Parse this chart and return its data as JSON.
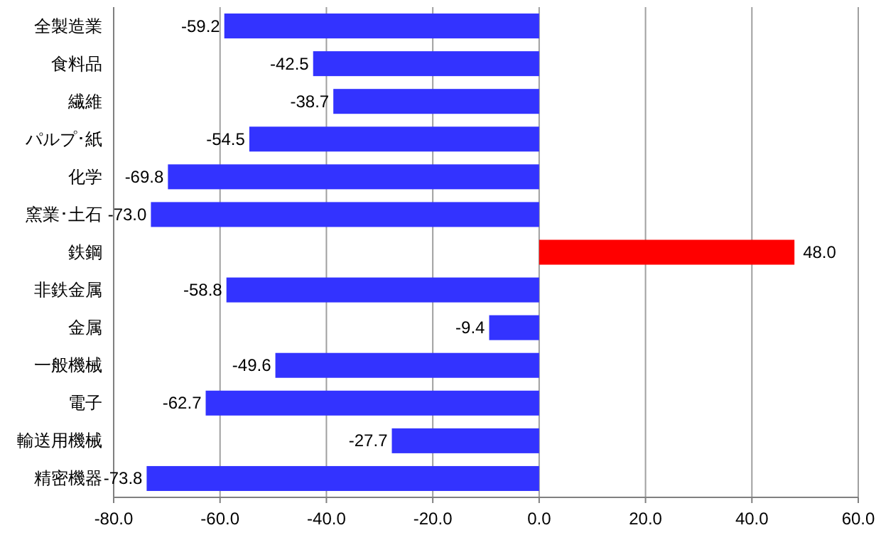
{
  "chart_data": {
    "type": "bar",
    "orientation": "horizontal",
    "categories": [
      "全製造業",
      "食料品",
      "繊維",
      "パルプ･紙",
      "化学",
      "窯業･土石",
      "鉄鋼",
      "非鉄金属",
      "金属",
      "一般機械",
      "電子",
      "輸送用機械",
      "精密機器"
    ],
    "values": [
      -59.2,
      -42.5,
      -38.7,
      -54.5,
      -69.8,
      -73.0,
      48.0,
      -58.8,
      -9.4,
      -49.6,
      -62.7,
      -27.7,
      -73.8
    ],
    "colors": [
      "#3333ff",
      "#3333ff",
      "#3333ff",
      "#3333ff",
      "#3333ff",
      "#3333ff",
      "#ff0000",
      "#3333ff",
      "#3333ff",
      "#3333ff",
      "#3333ff",
      "#3333ff",
      "#3333ff"
    ],
    "value_labels": [
      "-59.2",
      "-42.5",
      "-38.7",
      "-54.5",
      "-69.8",
      "-73.0",
      "48.0",
      "-58.8",
      "-9.4",
      "-49.6",
      "-62.7",
      "-27.7",
      "-73.8"
    ],
    "xlim": [
      -80,
      60
    ],
    "xticks": [
      {
        "value": -80,
        "label": "-80.0"
      },
      {
        "value": -60,
        "label": "-60.0"
      },
      {
        "value": -40,
        "label": "-40.0"
      },
      {
        "value": -20,
        "label": "-20.0"
      },
      {
        "value": 0,
        "label": "0.0"
      },
      {
        "value": 20,
        "label": "20.0"
      },
      {
        "value": 40,
        "label": "40.0"
      },
      {
        "value": 60,
        "label": "60.0"
      }
    ],
    "grid": "x"
  }
}
